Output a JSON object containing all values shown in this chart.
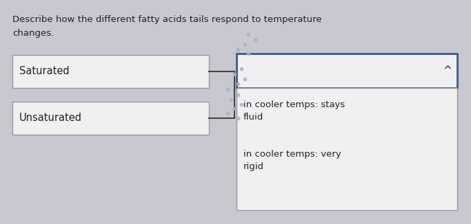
{
  "title_line1": "Describe how the different fatty acids tails respond to temperature",
  "title_line2": "changes.",
  "background_color": "#c8c8d0",
  "box_fill": "#f0f0f2",
  "box1_label": "Saturated",
  "box2_label": "Unsaturated",
  "dropdown_arrow": "^",
  "answer1": "in cooler temps: stays\nfluid",
  "answer2": "in cooler temps: very\nrigid",
  "box_edge_color": "#999999",
  "dropdown_edge_color": "#3a5a8a",
  "answer_edge_color": "#999999",
  "line_color": "#444444",
  "text_color": "#222222",
  "dot_color": "#b0b0c0"
}
